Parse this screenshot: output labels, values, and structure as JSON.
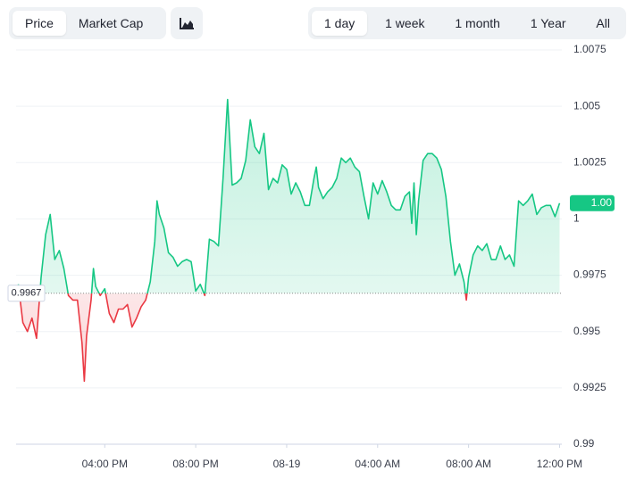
{
  "toolbar": {
    "metric_tabs": [
      "Price",
      "Market Cap"
    ],
    "selected_metric": 0,
    "range_tabs": [
      "1 day",
      "1 week",
      "1 month",
      "1 Year",
      "All"
    ],
    "selected_range": 0
  },
  "chart_data": {
    "type": "line",
    "x": [
      12.2,
      12.4,
      12.6,
      12.8,
      13.0,
      13.2,
      13.4,
      13.6,
      13.8,
      14.0,
      14.2,
      14.4,
      14.6,
      14.8,
      15.0,
      15.1,
      15.2,
      15.4,
      15.5,
      15.6,
      15.8,
      16.0,
      16.2,
      16.4,
      16.6,
      16.8,
      17.0,
      17.2,
      17.4,
      17.6,
      17.8,
      18.0,
      18.2,
      18.3,
      18.4,
      18.6,
      18.8,
      19.0,
      19.2,
      19.4,
      19.6,
      19.8,
      20.0,
      20.2,
      20.4,
      20.6,
      20.8,
      21.0,
      21.2,
      21.4,
      21.6,
      21.8,
      22.0,
      22.2,
      22.4,
      22.6,
      22.8,
      23.0,
      23.2,
      23.4,
      23.6,
      23.8,
      24.0,
      24.2,
      24.4,
      24.6,
      24.8,
      25.0,
      25.2,
      25.3,
      25.4,
      25.6,
      25.8,
      26.0,
      26.2,
      26.4,
      26.6,
      26.8,
      27.0,
      27.2,
      27.4,
      27.6,
      27.8,
      28.0,
      28.2,
      28.4,
      28.6,
      28.8,
      29.0,
      29.2,
      29.4,
      29.5,
      29.6,
      29.7,
      29.8,
      30.0,
      30.2,
      30.4,
      30.6,
      30.8,
      31.0,
      31.2,
      31.4,
      31.6,
      31.8,
      31.9,
      32.0,
      32.2,
      32.4,
      32.6,
      32.8,
      33.0,
      33.2,
      33.4,
      33.6,
      33.8,
      34.0,
      34.2,
      34.4,
      34.6,
      34.8,
      35.0,
      35.2,
      35.4,
      35.6,
      35.8,
      36.0
    ],
    "values": [
      0.9971,
      0.9954,
      0.995,
      0.9956,
      0.9947,
      0.9974,
      0.9993,
      1.0002,
      0.9982,
      0.9986,
      0.9978,
      0.9966,
      0.9964,
      0.9964,
      0.9945,
      0.9928,
      0.9948,
      0.9964,
      0.9978,
      0.997,
      0.9966,
      0.9969,
      0.9958,
      0.9954,
      0.996,
      0.996,
      0.9962,
      0.9952,
      0.9956,
      0.9961,
      0.9964,
      0.9972,
      0.999,
      1.0008,
      1.0002,
      0.9996,
      0.9985,
      0.9983,
      0.9979,
      0.9981,
      0.9982,
      0.9981,
      0.9968,
      0.9971,
      0.9966,
      0.9991,
      0.999,
      0.9988,
      1.0018,
      1.0053,
      1.0015,
      1.0016,
      1.0018,
      1.0026,
      1.0044,
      1.0032,
      1.0029,
      1.0038,
      1.0013,
      1.0018,
      1.0016,
      1.0024,
      1.0022,
      1.0011,
      1.0016,
      1.0012,
      1.0006,
      1.0006,
      1.0018,
      1.0023,
      1.0014,
      1.0009,
      1.0012,
      1.0014,
      1.0018,
      1.0027,
      1.0025,
      1.0027,
      1.0023,
      1.0021,
      1.001,
      1.0,
      1.0016,
      1.0011,
      1.0017,
      1.0012,
      1.0006,
      1.0004,
      1.0004,
      1.001,
      1.0012,
      0.9998,
      1.0016,
      0.9993,
      1.0008,
      1.0026,
      1.0029,
      1.0029,
      1.0027,
      1.0022,
      1.001,
      0.999,
      0.9975,
      0.998,
      0.9972,
      0.9964,
      0.9974,
      0.9984,
      0.9988,
      0.9986,
      0.9989,
      0.9982,
      0.9982,
      0.9988,
      0.9982,
      0.9984,
      0.9979,
      1.0008,
      1.0006,
      1.0008,
      1.0011,
      1.0002,
      1.0005,
      1.0006,
      1.0006,
      1.0001,
      1.0007
    ],
    "baseline": 0.9967,
    "current_label": "1.00",
    "color_up": "#16c784",
    "color_down": "#ea3943",
    "xlim": [
      12.1,
      36.1
    ],
    "ylim": [
      0.99,
      1.0075
    ],
    "yticks": [
      0.99,
      0.9925,
      0.995,
      0.9975,
      1,
      1.0025,
      1.005,
      1.0075
    ],
    "xticks": [
      {
        "value": 16,
        "label": "04:00 PM"
      },
      {
        "value": 20,
        "label": "08:00 PM"
      },
      {
        "value": 24,
        "label": "08-19"
      },
      {
        "value": 28,
        "label": "04:00 AM"
      },
      {
        "value": 32,
        "label": "08:00 AM"
      },
      {
        "value": 36,
        "label": "12:00 PM"
      }
    ],
    "grid": true
  }
}
